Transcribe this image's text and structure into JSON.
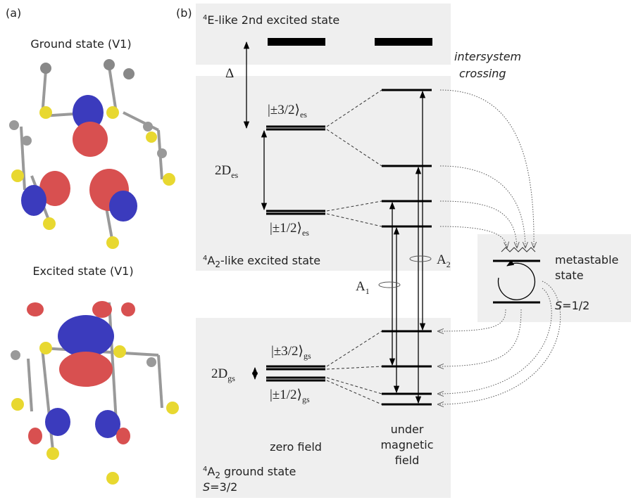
{
  "panel_a": {
    "label": "(a)",
    "ground_title": "Ground state (V1)",
    "excited_title": "Excited state (V1)"
  },
  "panel_b": {
    "label": "(b)",
    "second_excited": {
      "sup": "4",
      "text": "E-like 2nd excited state"
    },
    "isc": [
      "intersystem",
      "crossing"
    ],
    "delta": "Δ",
    "es_32": {
      "main": "|±3/2⟩",
      "sub": "es"
    },
    "d_es": {
      "main": "2D",
      "sub": "es"
    },
    "es_12": {
      "main": "|±1/2⟩",
      "sub": "es"
    },
    "excited_state": {
      "sup": "4",
      "main": "A",
      "sub": "2",
      "text": "-like excited state"
    },
    "a1": {
      "main": "A",
      "sub": "1"
    },
    "a2": {
      "main": "A",
      "sub": "2"
    },
    "metastable": [
      "metastable",
      "state"
    ],
    "s_half": {
      "main": "S",
      "text": "=1/2"
    },
    "gs_32": {
      "main": "|±3/2⟩",
      "sub": "gs"
    },
    "d_gs": {
      "main": "2D",
      "sub": "gs"
    },
    "gs_12": {
      "main": "|±1/2⟩",
      "sub": "gs"
    },
    "zero_field": "zero field",
    "magnetic": [
      "under",
      "magnetic",
      "field"
    ],
    "ground_state": {
      "sup": "4",
      "main": "A",
      "sub": "2",
      "text": " ground state"
    },
    "s_three_half": {
      "main": "S",
      "text": "=3/2"
    }
  }
}
